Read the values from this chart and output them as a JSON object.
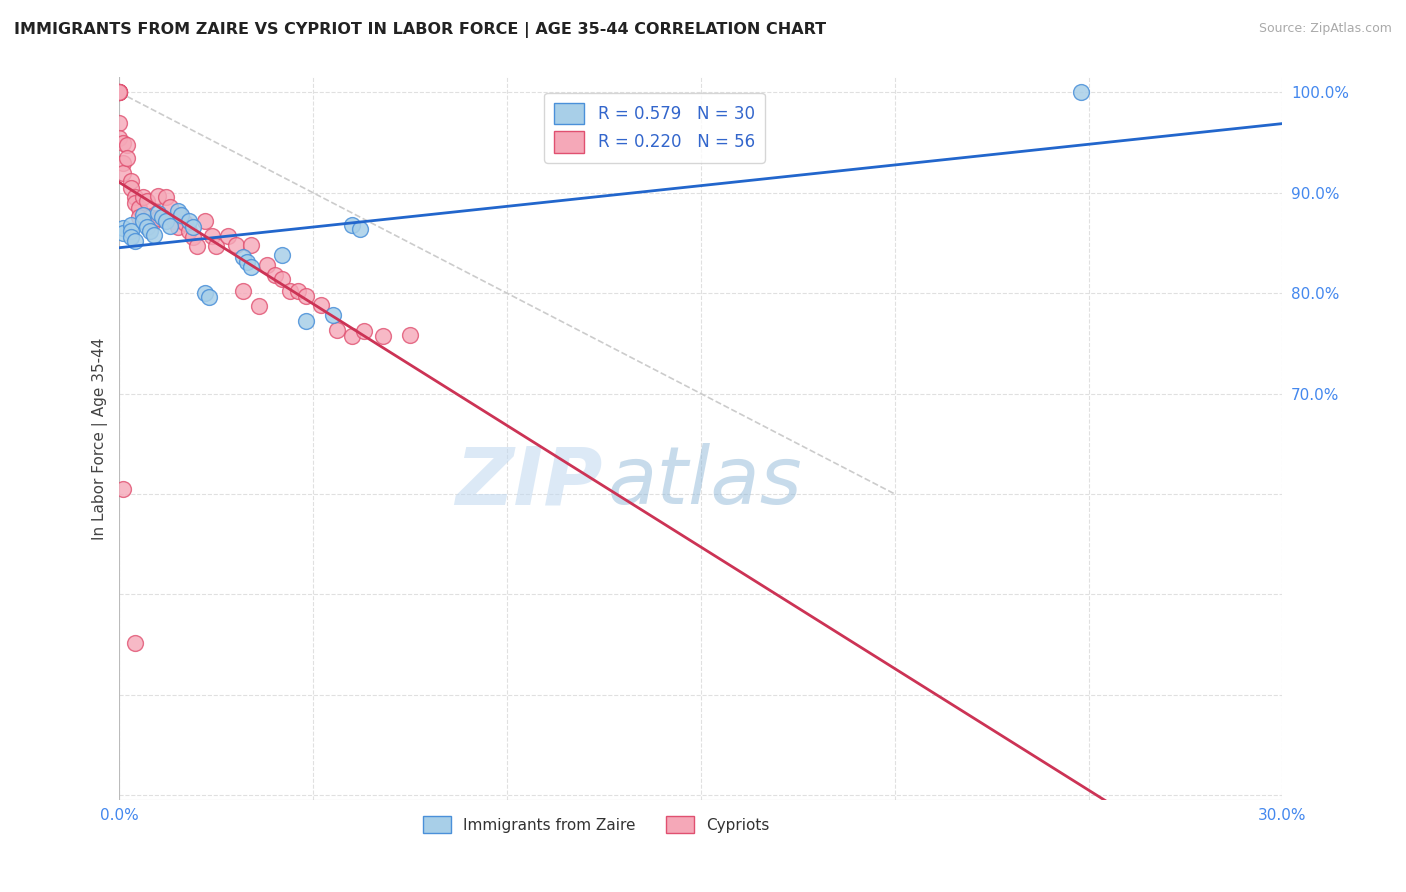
{
  "title": "IMMIGRANTS FROM ZAIRE VS CYPRIOT IN LABOR FORCE | AGE 35-44 CORRELATION CHART",
  "source": "Source: ZipAtlas.com",
  "ylabel": "In Labor Force | Age 35-44",
  "xlim": [
    0.0,
    0.3
  ],
  "ylim": [
    0.295,
    1.015
  ],
  "xticks": [
    0.0,
    0.05,
    0.1,
    0.15,
    0.2,
    0.25,
    0.3
  ],
  "yticks": [
    0.3,
    0.4,
    0.5,
    0.6,
    0.7,
    0.8,
    0.9,
    1.0
  ],
  "blue_face_color": "#a8cfe8",
  "blue_edge_color": "#4a90d9",
  "pink_face_color": "#f5a8b8",
  "pink_edge_color": "#e05070",
  "blue_line_color": "#2266cc",
  "pink_line_color": "#cc3355",
  "diag_color": "#cccccc",
  "grid_color": "#e0e0e0",
  "legend_blue_label": "R = 0.579   N = 30",
  "legend_pink_label": "R = 0.220   N = 56",
  "watermark_zip": "ZIP",
  "watermark_atlas": "atlas",
  "bottom_legend_blue": "Immigrants from Zaire",
  "bottom_legend_pink": "Cypriots",
  "blue_x": [
    0.001,
    0.001,
    0.003,
    0.003,
    0.003,
    0.004,
    0.006,
    0.006,
    0.007,
    0.008,
    0.009,
    0.01,
    0.011,
    0.012,
    0.013,
    0.015,
    0.016,
    0.018,
    0.019,
    0.022,
    0.023,
    0.032,
    0.033,
    0.034,
    0.042,
    0.048,
    0.055,
    0.06,
    0.062,
    0.248
  ],
  "blue_y": [
    0.865,
    0.86,
    0.868,
    0.862,
    0.856,
    0.852,
    0.878,
    0.872,
    0.866,
    0.862,
    0.858,
    0.88,
    0.876,
    0.872,
    0.867,
    0.882,
    0.878,
    0.872,
    0.866,
    0.8,
    0.796,
    0.836,
    0.831,
    0.826,
    0.838,
    0.772,
    0.778,
    0.868,
    0.864,
    1.0
  ],
  "pink_x": [
    0.0,
    0.0,
    0.0,
    0.0,
    0.0,
    0.0,
    0.0,
    0.0,
    0.001,
    0.001,
    0.001,
    0.001,
    0.002,
    0.002,
    0.003,
    0.003,
    0.004,
    0.004,
    0.005,
    0.005,
    0.006,
    0.007,
    0.008,
    0.009,
    0.01,
    0.01,
    0.012,
    0.013,
    0.014,
    0.015,
    0.016,
    0.017,
    0.018,
    0.019,
    0.02,
    0.022,
    0.024,
    0.025,
    0.028,
    0.03,
    0.032,
    0.034,
    0.036,
    0.038,
    0.04,
    0.042,
    0.044,
    0.046,
    0.048,
    0.052,
    0.056,
    0.06,
    0.063,
    0.068,
    0.075,
    0.004
  ],
  "pink_y": [
    1.0,
    1.0,
    1.0,
    1.0,
    1.0,
    1.0,
    0.97,
    0.955,
    0.95,
    0.93,
    0.92,
    0.605,
    0.948,
    0.935,
    0.912,
    0.905,
    0.896,
    0.89,
    0.885,
    0.876,
    0.896,
    0.892,
    0.876,
    0.872,
    0.897,
    0.875,
    0.896,
    0.886,
    0.872,
    0.866,
    0.877,
    0.87,
    0.862,
    0.856,
    0.847,
    0.872,
    0.857,
    0.847,
    0.857,
    0.848,
    0.802,
    0.848,
    0.787,
    0.828,
    0.818,
    0.814,
    0.802,
    0.802,
    0.797,
    0.788,
    0.763,
    0.757,
    0.762,
    0.757,
    0.758,
    0.452
  ]
}
